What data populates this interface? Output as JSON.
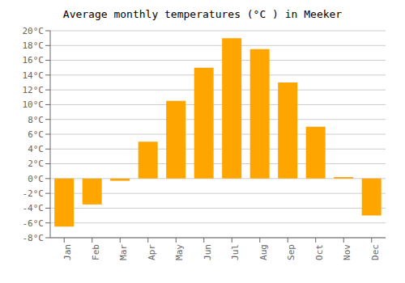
{
  "chart_data": {
    "type": "bar",
    "title": "Average monthly temperatures (°C ) in Meeker",
    "categories": [
      "Jan",
      "Feb",
      "Mar",
      "Apr",
      "May",
      "Jun",
      "Jul",
      "Aug",
      "Sep",
      "Oct",
      "Nov",
      "Dec"
    ],
    "values": [
      -6.5,
      -3.5,
      -0.3,
      5.0,
      10.5,
      15.0,
      19.0,
      17.5,
      13.0,
      7.0,
      0.2,
      -5.0
    ],
    "color": "#FFA500",
    "ylim": [
      -8,
      20
    ],
    "yticks": [
      {
        "value": -8,
        "label": "-8°C"
      },
      {
        "value": -6,
        "label": "-6°C"
      },
      {
        "value": -4,
        "label": "-4°C"
      },
      {
        "value": -2,
        "label": "-2°C"
      },
      {
        "value": 0,
        "label": "0°C"
      },
      {
        "value": 2,
        "label": "2°C"
      },
      {
        "value": 4,
        "label": "4°C"
      },
      {
        "value": 6,
        "label": "6°C"
      },
      {
        "value": 8,
        "label": "8°C"
      },
      {
        "value": 10,
        "label": "10°C"
      },
      {
        "value": 12,
        "label": "12°C"
      },
      {
        "value": 14,
        "label": "14°C"
      },
      {
        "value": 16,
        "label": "16°C"
      },
      {
        "value": 18,
        "label": "18°C"
      },
      {
        "value": 20,
        "label": "20°C"
      }
    ],
    "grid": true
  }
}
